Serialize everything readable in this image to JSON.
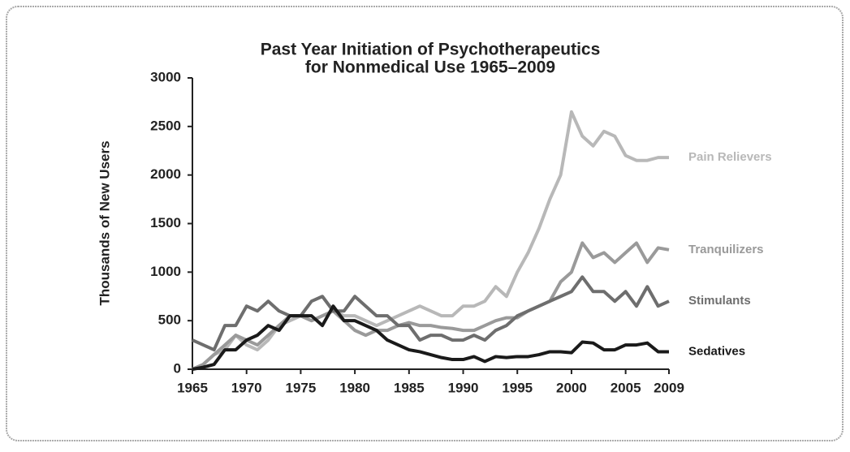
{
  "chart_data": {
    "type": "line",
    "title": [
      "Past Year Initiation of Psychotherapeutics",
      "for Nonmedical Use 1965–2009"
    ],
    "ylabel": "Thousands of New Users",
    "x": [
      1965,
      1966,
      1967,
      1968,
      1969,
      1970,
      1971,
      1972,
      1973,
      1974,
      1975,
      1976,
      1977,
      1978,
      1979,
      1980,
      1981,
      1982,
      1983,
      1984,
      1985,
      1986,
      1987,
      1988,
      1989,
      1990,
      1991,
      1992,
      1993,
      1994,
      1995,
      1996,
      1997,
      1998,
      1999,
      2000,
      2001,
      2002,
      2003,
      2004,
      2005,
      2006,
      2007,
      2008,
      2009
    ],
    "xlim": [
      1965,
      2009
    ],
    "xticks": [
      1965,
      1970,
      1975,
      1980,
      1985,
      1990,
      1995,
      2000,
      2005,
      2009
    ],
    "ylim": [
      0,
      3000
    ],
    "yticks": [
      0,
      500,
      1000,
      1500,
      2000,
      2500,
      3000
    ],
    "series": [
      {
        "name": "Pain Relievers",
        "color": "#b8b8b8",
        "values": [
          0,
          50,
          150,
          200,
          350,
          250,
          200,
          300,
          450,
          500,
          550,
          500,
          550,
          600,
          550,
          550,
          500,
          450,
          500,
          550,
          600,
          650,
          600,
          550,
          550,
          650,
          650,
          700,
          850,
          750,
          1000,
          1200,
          1450,
          1750,
          2000,
          2650,
          2400,
          2300,
          2450,
          2400,
          2200,
          2150,
          2150,
          2180,
          2180
        ]
      },
      {
        "name": "Tranquilizers",
        "color": "#9a9a9a",
        "values": [
          0,
          50,
          150,
          250,
          350,
          300,
          250,
          350,
          450,
          550,
          550,
          500,
          550,
          600,
          500,
          400,
          350,
          400,
          400,
          450,
          480,
          450,
          450,
          430,
          420,
          400,
          400,
          450,
          500,
          530,
          530,
          600,
          650,
          700,
          900,
          1000,
          1300,
          1150,
          1200,
          1100,
          1200,
          1300,
          1100,
          1250,
          1230
        ]
      },
      {
        "name": "Stimulants",
        "color": "#6e6e6e",
        "values": [
          300,
          250,
          200,
          450,
          450,
          650,
          600,
          700,
          600,
          550,
          550,
          700,
          750,
          600,
          600,
          750,
          650,
          550,
          550,
          450,
          450,
          300,
          350,
          350,
          300,
          300,
          350,
          300,
          400,
          450,
          550,
          600,
          650,
          700,
          750,
          800,
          950,
          800,
          800,
          700,
          800,
          650,
          850,
          650,
          700
        ]
      },
      {
        "name": "Sedatives",
        "color": "#1a1a1a",
        "values": [
          0,
          20,
          50,
          200,
          200,
          300,
          350,
          450,
          400,
          550,
          550,
          550,
          450,
          650,
          500,
          500,
          450,
          400,
          300,
          250,
          200,
          180,
          150,
          120,
          100,
          100,
          130,
          80,
          130,
          120,
          130,
          130,
          150,
          180,
          180,
          170,
          280,
          270,
          200,
          200,
          250,
          250,
          270,
          180,
          180
        ]
      }
    ]
  }
}
